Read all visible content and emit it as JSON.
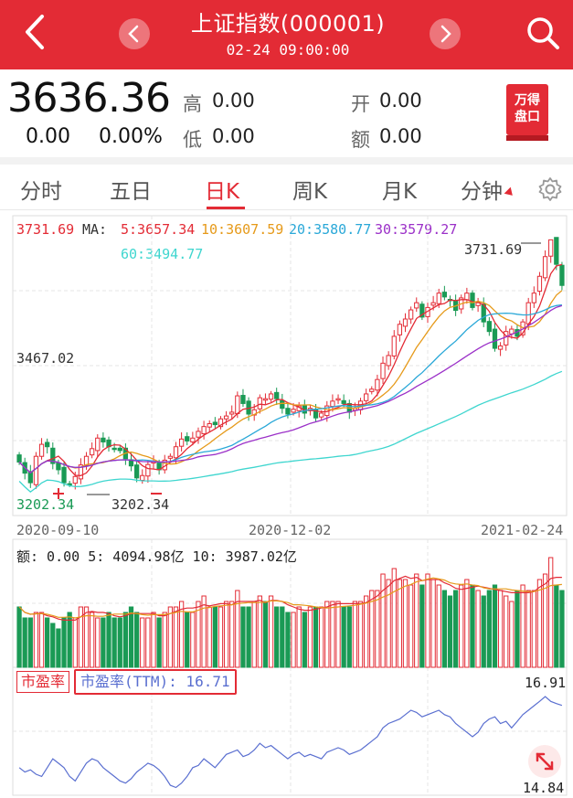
{
  "header": {
    "title": "上证指数(000001)",
    "time": "02-24 09:00:00"
  },
  "quote": {
    "price": "3636.36",
    "change": "0.00",
    "change_pct": "0.00%",
    "high_label": "高",
    "high": "0.00",
    "low_label": "低",
    "low": "0.00",
    "open_label": "开",
    "open": "0.00",
    "amount_label": "额",
    "amount": "0.00",
    "brand_line1": "万得",
    "brand_line2": "盘口"
  },
  "tabs": [
    {
      "label": "分时"
    },
    {
      "label": "五日"
    },
    {
      "label": "日K",
      "active": true
    },
    {
      "label": "周K"
    },
    {
      "label": "月K"
    },
    {
      "label": "分钟"
    }
  ],
  "ma": {
    "high_label": "3731.69",
    "ma_label": "MA:",
    "ma5": "5:3657.34",
    "ma10": "10:3607.59",
    "ma20": "20:3580.77",
    "ma30": "30:3579.27",
    "ma60": "60:3494.77",
    "colors": {
      "ma5": "#e32b35",
      "ma10": "#e69a1a",
      "ma20": "#2aa8d8",
      "ma30": "#9b30c8",
      "ma60": "#3fd6cf"
    }
  },
  "chart_labels": {
    "max_marker": "3731.69",
    "mid_price": "3467.02",
    "low_left": "3202.34",
    "low_marker": "3202.34",
    "date_start": "2020-09-10",
    "date_mid": "2020-12-02",
    "date_end": "2021-02-24"
  },
  "volume": {
    "label": "额: 0.00  5: 4094.98亿  10: 3987.02亿"
  },
  "pe": {
    "tag": "市盈率",
    "ttm": "市盈率(TTM): 16.71",
    "max": "16.91",
    "min": "14.84"
  },
  "chart_data": [
    {
      "type": "candlestick",
      "x_start": "2020-09-10",
      "x_end": "2021-02-24",
      "x_ticks": [
        "2020-09-10",
        "2020-12-02",
        "2021-02-24"
      ],
      "y_labels": [
        "3731.69",
        "3467.02",
        "3202.34"
      ],
      "ylim": [
        3202.34,
        3731.69
      ],
      "close_approx": [
        3268,
        3245,
        3225,
        3280,
        3305,
        3300,
        3265,
        3252,
        3225,
        3222,
        3238,
        3262,
        3280,
        3296,
        3318,
        3310,
        3300,
        3296,
        3292,
        3275,
        3260,
        3235,
        3240,
        3263,
        3270,
        3252,
        3272,
        3280,
        3300,
        3316,
        3312,
        3318,
        3332,
        3342,
        3348,
        3346,
        3358,
        3364,
        3372,
        3406,
        3390,
        3368,
        3377,
        3402,
        3400,
        3410,
        3400,
        3380,
        3368,
        3378,
        3385,
        3370,
        3380,
        3360,
        3370,
        3385,
        3395,
        3400,
        3390,
        3372,
        3380,
        3395,
        3410,
        3420,
        3440,
        3474,
        3490,
        3530,
        3555,
        3566,
        3585,
        3600,
        3570,
        3590,
        3600,
        3620,
        3612,
        3606,
        3584,
        3610,
        3620,
        3590,
        3600,
        3560,
        3540,
        3505,
        3510,
        3540,
        3545,
        3530,
        3560,
        3600,
        3620,
        3655,
        3696,
        3731,
        3680,
        3636
      ],
      "colors": {
        "up": "#e32b35",
        "down": "#1a9a55"
      }
    },
    {
      "type": "bar",
      "name": "额",
      "values_relative": [
        0.55,
        0.45,
        0.45,
        0.5,
        0.5,
        0.45,
        0.4,
        0.35,
        0.45,
        0.5,
        0.45,
        0.55,
        0.55,
        0.5,
        0.45,
        0.45,
        0.5,
        0.45,
        0.45,
        0.5,
        0.55,
        0.5,
        0.45,
        0.45,
        0.5,
        0.45,
        0.5,
        0.55,
        0.55,
        0.6,
        0.5,
        0.5,
        0.6,
        0.65,
        0.55,
        0.55,
        0.55,
        0.6,
        0.6,
        0.7,
        0.55,
        0.55,
        0.6,
        0.65,
        0.6,
        0.65,
        0.55,
        0.55,
        0.5,
        0.5,
        0.55,
        0.5,
        0.55,
        0.55,
        0.55,
        0.6,
        0.6,
        0.6,
        0.55,
        0.55,
        0.6,
        0.6,
        0.65,
        0.7,
        0.7,
        0.85,
        0.8,
        0.9,
        0.8,
        0.8,
        0.75,
        0.85,
        0.75,
        0.85,
        0.8,
        0.75,
        0.7,
        0.65,
        0.7,
        0.75,
        0.8,
        0.75,
        0.7,
        0.65,
        0.7,
        0.75,
        0.7,
        0.65,
        0.6,
        0.7,
        0.75,
        0.7,
        0.7,
        0.8,
        0.85,
        1.0,
        0.75,
        0.7
      ]
    },
    {
      "type": "line",
      "name": "市盈率(TTM)",
      "ylim": [
        14.84,
        16.91
      ],
      "values_approx": [
        15.3,
        15.2,
        15.25,
        15.15,
        15.1,
        15.3,
        15.5,
        15.4,
        15.3,
        15.1,
        15.0,
        15.2,
        15.4,
        15.5,
        15.45,
        15.3,
        15.2,
        15.1,
        15.0,
        14.95,
        15.05,
        15.2,
        15.3,
        15.4,
        15.35,
        15.25,
        15.1,
        14.9,
        14.85,
        14.95,
        15.1,
        15.3,
        15.35,
        15.5,
        15.4,
        15.3,
        15.45,
        15.6,
        15.65,
        15.7,
        15.55,
        15.6,
        15.7,
        15.85,
        15.75,
        15.8,
        15.7,
        15.6,
        15.5,
        15.6,
        15.65,
        15.55,
        15.6,
        15.55,
        15.5,
        15.65,
        15.7,
        15.75,
        15.7,
        15.6,
        15.65,
        15.7,
        15.8,
        15.9,
        16.0,
        16.2,
        16.3,
        16.35,
        16.4,
        16.5,
        16.6,
        16.55,
        16.45,
        16.5,
        16.55,
        16.6,
        16.5,
        16.45,
        16.3,
        16.2,
        16.1,
        16.0,
        16.1,
        16.3,
        16.4,
        16.45,
        16.3,
        16.35,
        16.2,
        16.35,
        16.5,
        16.6,
        16.7,
        16.8,
        16.91,
        16.8,
        16.75,
        16.71
      ]
    }
  ]
}
